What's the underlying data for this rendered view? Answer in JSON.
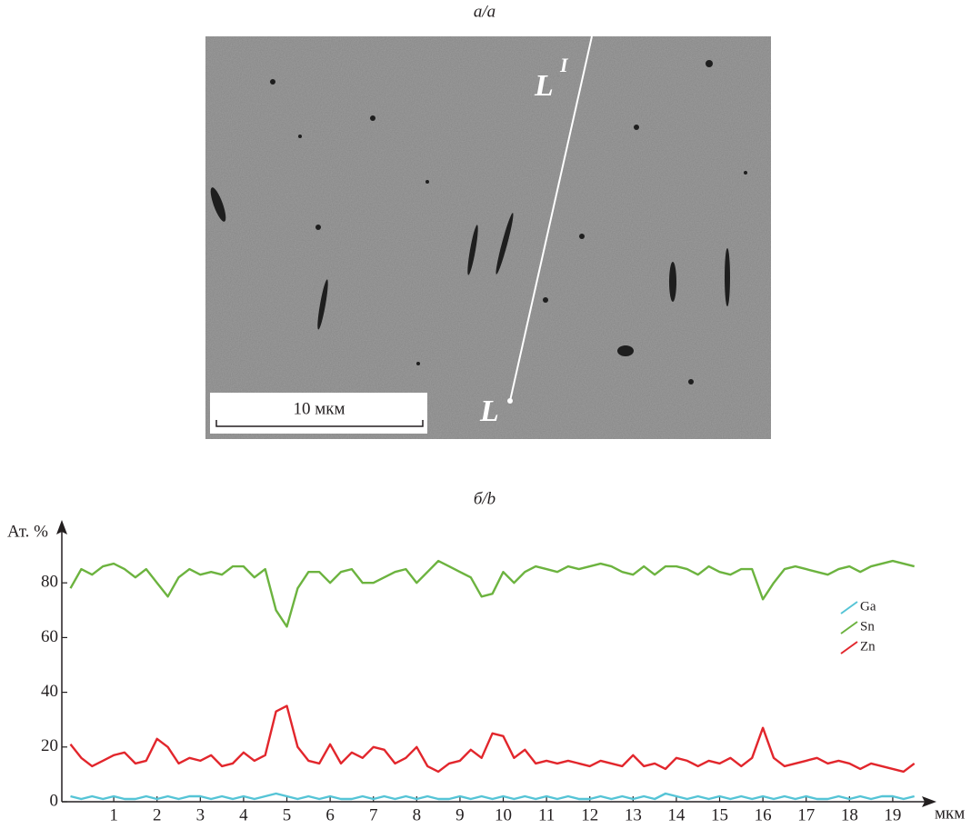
{
  "panel_a": {
    "label": "а/a",
    "scale_bar": "10 мкм",
    "start_label": "L",
    "end_label": "L",
    "end_superscript": "I"
  },
  "chart_data": {
    "type": "line",
    "title": "б/b",
    "y_label": "Ат. %",
    "x_label": "мкм",
    "x": [
      0,
      0.25,
      0.5,
      0.75,
      1,
      1.25,
      1.5,
      1.75,
      2,
      2.25,
      2.5,
      2.75,
      3,
      3.25,
      3.5,
      3.75,
      4,
      4.25,
      4.5,
      4.75,
      5,
      5.25,
      5.5,
      5.75,
      6,
      6.25,
      6.5,
      6.75,
      7,
      7.25,
      7.5,
      7.75,
      8,
      8.25,
      8.5,
      8.75,
      9,
      9.25,
      9.5,
      9.75,
      10,
      10.25,
      10.5,
      10.75,
      11,
      11.25,
      11.5,
      11.75,
      12,
      12.25,
      12.5,
      12.75,
      13,
      13.25,
      13.5,
      13.75,
      14,
      14.25,
      14.5,
      14.75,
      15,
      15.25,
      15.5,
      15.75,
      16,
      16.25,
      16.5,
      16.75,
      17,
      17.25,
      17.5,
      17.75,
      18,
      18.25,
      18.5,
      18.75,
      19,
      19.25,
      19.5
    ],
    "series": [
      {
        "name": "Ga",
        "color": "#55c4d6",
        "values": [
          2,
          1,
          2,
          1,
          2,
          1,
          1,
          2,
          1,
          2,
          1,
          2,
          2,
          1,
          2,
          1,
          2,
          1,
          2,
          3,
          2,
          1,
          2,
          1,
          2,
          1,
          1,
          2,
          1,
          2,
          1,
          2,
          1,
          2,
          1,
          1,
          2,
          1,
          2,
          1,
          2,
          1,
          2,
          1,
          2,
          1,
          2,
          1,
          1,
          2,
          1,
          2,
          1,
          2,
          1,
          3,
          2,
          1,
          2,
          1,
          2,
          1,
          2,
          1,
          2,
          1,
          2,
          1,
          2,
          1,
          1,
          2,
          1,
          2,
          1,
          2,
          2,
          1,
          2
        ]
      },
      {
        "name": "Sn",
        "color": "#6cb33f",
        "values": [
          78,
          85,
          83,
          86,
          87,
          85,
          82,
          85,
          80,
          75,
          82,
          85,
          83,
          84,
          83,
          86,
          86,
          82,
          85,
          70,
          64,
          78,
          84,
          84,
          80,
          84,
          85,
          80,
          80,
          82,
          84,
          85,
          80,
          84,
          88,
          86,
          84,
          82,
          75,
          76,
          84,
          80,
          84,
          86,
          85,
          84,
          86,
          85,
          86,
          87,
          86,
          84,
          83,
          86,
          83,
          86,
          86,
          85,
          83,
          86,
          84,
          83,
          85,
          85,
          74,
          80,
          85,
          86,
          85,
          84,
          83,
          85,
          86,
          84,
          86,
          87,
          88,
          87,
          86
        ]
      },
      {
        "name": "Zn",
        "color": "#e2262c",
        "values": [
          21,
          16,
          13,
          15,
          17,
          18,
          14,
          15,
          23,
          20,
          14,
          16,
          15,
          17,
          13,
          14,
          18,
          15,
          17,
          33,
          35,
          20,
          15,
          14,
          21,
          14,
          18,
          16,
          20,
          19,
          14,
          16,
          20,
          13,
          11,
          14,
          15,
          19,
          16,
          25,
          24,
          16,
          19,
          14,
          15,
          14,
          15,
          14,
          13,
          15,
          14,
          13,
          17,
          13,
          14,
          12,
          16,
          15,
          13,
          15,
          14,
          16,
          13,
          16,
          27,
          16,
          13,
          14,
          15,
          16,
          14,
          15,
          14,
          12,
          14,
          13,
          12,
          11,
          14
        ]
      }
    ],
    "xlim": [
      -0.2,
      19.8
    ],
    "xticks": [
      1,
      2,
      3,
      4,
      5,
      6,
      7,
      8,
      9,
      10,
      11,
      12,
      13,
      14,
      15,
      16,
      17,
      18,
      19
    ],
    "ylim": [
      0,
      100
    ],
    "yticks": [
      0,
      20,
      40,
      60,
      80
    ],
    "grid": false,
    "legend": "right"
  }
}
